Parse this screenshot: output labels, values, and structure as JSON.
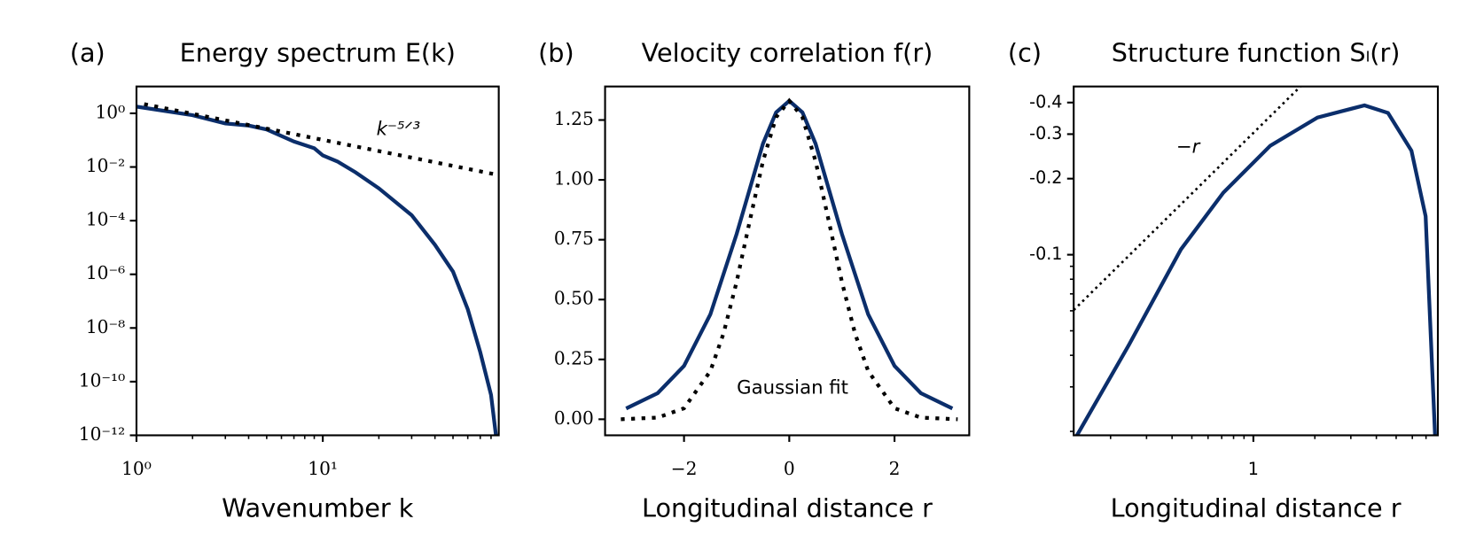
{
  "chart_data": [
    {
      "type": "line",
      "panel": "(a)",
      "title": "Energy spectrum E(k)",
      "xlabel": "Wavenumber k",
      "xscale": "log",
      "yscale": "log",
      "xlim": [
        1,
        88
      ],
      "ylim": [
        1e-12,
        10
      ],
      "xticks": [
        {
          "value": 1,
          "label": "10⁰"
        },
        {
          "value": 10,
          "label": "10¹"
        }
      ],
      "xminorticks": [
        2,
        3,
        4,
        5,
        6,
        7,
        8,
        9,
        20,
        30,
        40,
        50,
        60,
        70,
        80
      ],
      "yticks": [
        {
          "value": 1,
          "label": "10⁰"
        },
        {
          "value": 0.01,
          "label": "10⁻²"
        },
        {
          "value": 0.0001,
          "label": "10⁻⁴"
        },
        {
          "value": 1e-06,
          "label": "10⁻⁶"
        },
        {
          "value": 1e-08,
          "label": "10⁻⁸"
        },
        {
          "value": 1e-10,
          "label": "10⁻¹⁰"
        },
        {
          "value": 1e-12,
          "label": "10⁻¹²"
        }
      ],
      "series": [
        {
          "color": "#0b2e6b",
          "dash": "solid",
          "x": [
            1,
            2,
            3,
            4,
            5,
            7,
            9,
            10,
            12,
            15,
            20,
            30,
            40,
            50,
            60,
            70,
            80,
            85
          ],
          "values": [
            1.78,
            0.85,
            0.42,
            0.35,
            0.25,
            0.089,
            0.05,
            0.027,
            0.016,
            0.0063,
            0.0016,
            0.00016,
            1.26e-05,
            1.26e-06,
            5e-08,
            1.26e-09,
            3.2e-11,
            1e-12
          ]
        },
        {
          "color": "#000000",
          "dash": "dotted",
          "x": [
            1.1,
            88
          ],
          "values": [
            2.2,
            0.005
          ]
        }
      ],
      "annotations": [
        "k⁻⁵ᐟ³"
      ]
    },
    {
      "type": "line",
      "panel": "(b)",
      "title": "Velocity correlation f(r)",
      "xlabel": "Longitudinal distance r",
      "xscale": "linear",
      "yscale": "linear",
      "xlim": [
        -3.5,
        3.42
      ],
      "ylim": [
        -0.067,
        1.39
      ],
      "xticks": [
        {
          "value": -2,
          "label": "−2"
        },
        0,
        2
      ],
      "yticks": [
        {
          "value": 0,
          "label": "0.00"
        },
        {
          "value": 0.25,
          "label": "0.25"
        },
        {
          "value": 0.5,
          "label": "0.50"
        },
        {
          "value": 0.75,
          "label": "0.75"
        },
        {
          "value": 1,
          "label": "1.00"
        },
        {
          "value": 1.25,
          "label": "1.25"
        }
      ],
      "series": [
        {
          "color": "#0b2e6b",
          "dash": "solid",
          "x": [
            -3.1,
            -2.5,
            -2,
            -1.5,
            -1,
            -0.5,
            -0.25,
            0,
            0.25,
            0.5,
            1,
            1.5,
            2,
            2.5,
            3.1
          ],
          "values": [
            0.045,
            0.109,
            0.223,
            0.438,
            0.774,
            1.151,
            1.282,
            1.33,
            1.282,
            1.151,
            0.774,
            0.438,
            0.223,
            0.109,
            0.045
          ]
        },
        {
          "color": "#000000",
          "dash": "dotted",
          "x": [
            -3.2,
            -2.5,
            -2,
            -1.5,
            -1.25,
            -1,
            -0.75,
            -0.5,
            -0.25,
            0,
            0.25,
            0.5,
            0.75,
            1,
            1.25,
            1.5,
            2,
            2.5,
            3.2
          ],
          "values": [
            0,
            0.007,
            0.046,
            0.201,
            0.358,
            0.574,
            0.829,
            1.078,
            1.262,
            1.33,
            1.262,
            1.078,
            0.829,
            0.574,
            0.358,
            0.201,
            0.046,
            0.007,
            0
          ]
        }
      ],
      "annotations": [
        "Gaussian fit"
      ]
    },
    {
      "type": "line",
      "panel": "(c)",
      "title": "Structure function Sₗ(r)",
      "xlabel": "Longitudinal distance r",
      "xscale": "log",
      "yscale": "log",
      "xlim": [
        0.132,
        8
      ],
      "ylim": [
        0.0193,
        0.463
      ],
      "xticks": [
        1
      ],
      "xminorticks": [
        0.2,
        0.3,
        0.4,
        0.5,
        0.6,
        0.7,
        0.8,
        0.9,
        2,
        3,
        4,
        5,
        6,
        7
      ],
      "yticks": [
        {
          "value": 0.1,
          "label": "-0.1"
        },
        {
          "value": 0.2,
          "label": "-0.2"
        },
        {
          "value": 0.3,
          "label": "-0.3"
        },
        {
          "value": 0.4,
          "label": "-0.4"
        }
      ],
      "yminorticks": [
        0.02,
        0.03,
        0.04,
        0.05,
        0.06,
        0.07,
        0.08,
        0.09
      ],
      "series": [
        {
          "color": "#0b2e6b",
          "dash": "solid",
          "x": [
            0.137,
            0.246,
            0.442,
            0.713,
            1.21,
            2.06,
            3.5,
            4.56,
            5.94,
            6.97,
            7.75
          ],
          "values": [
            0.0193,
            0.044,
            0.105,
            0.176,
            0.27,
            0.349,
            0.39,
            0.364,
            0.258,
            0.142,
            0.0193
          ]
        },
        {
          "color": "#000000",
          "dash": "dotted",
          "x": [
            0.132,
            1.7
          ],
          "values": [
            0.0604,
            0.463
          ]
        }
      ],
      "annotations": [
        "−r"
      ]
    }
  ]
}
